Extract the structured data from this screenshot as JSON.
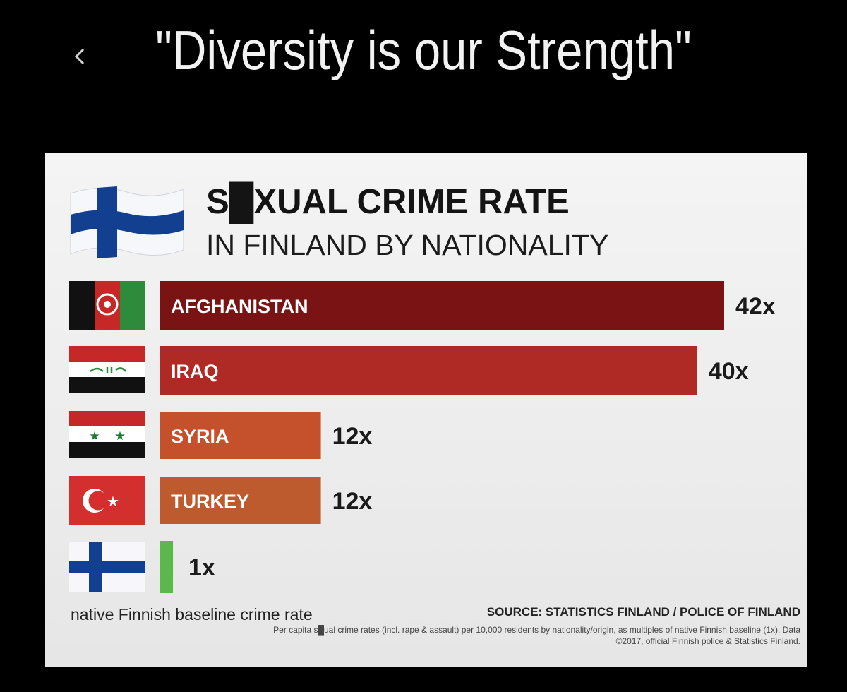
{
  "caption": "\"Diversity is our Strength\"",
  "card": {
    "title": "S█XUAL CRIME RATE",
    "subtitle": "IN FINLAND BY NATIONALITY",
    "baseline_note": "native Finnish baseline crime rate",
    "source": "SOURCE: STATISTICS FINLAND / POLICE OF FINLAND",
    "footnote": "Per capita s█ual crime rates (incl. rape & assault) per 10,000 residents by nationality/origin, as multiples of native Finnish baseline (1x). Data ©2017, official Finnish police & Statistics Finland."
  },
  "chart_data": {
    "type": "bar",
    "orientation": "horizontal",
    "title": "S█XUAL CRIME RATE",
    "subtitle": "IN FINLAND BY NATIONALITY",
    "categories": [
      "AFGHANISTAN",
      "IRAQ",
      "SYRIA",
      "TURKEY",
      ""
    ],
    "values": [
      42,
      40,
      12,
      12,
      1
    ],
    "value_labels": [
      "42x",
      "40x",
      "12x",
      "12x",
      "1x"
    ],
    "colors": [
      "#7a1414",
      "#b02a25",
      "#c4502c",
      "#bd5a2e",
      "#5cb84d"
    ],
    "flags": [
      "afghanistan-flag",
      "iraq-flag",
      "syria-flag",
      "turkey-flag",
      "finland-flag"
    ]
  }
}
